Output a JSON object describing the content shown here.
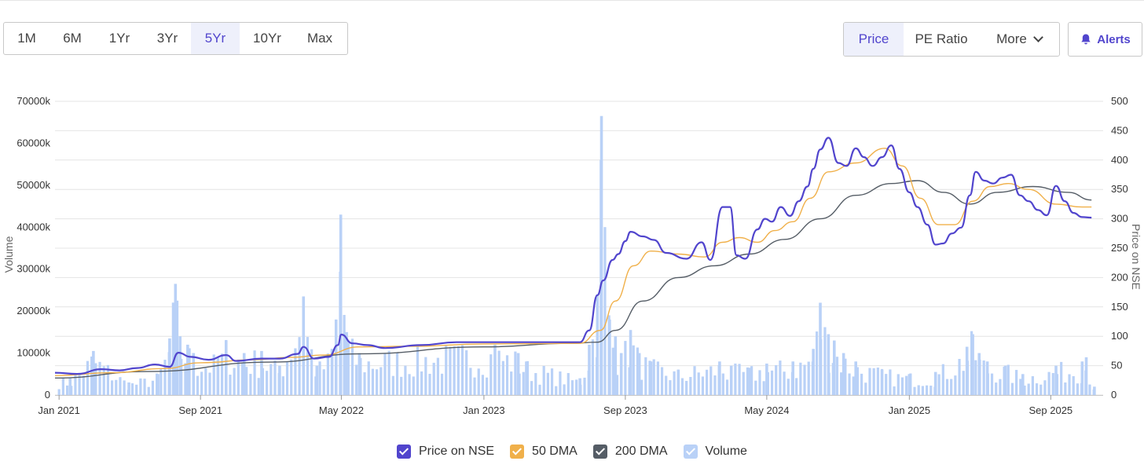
{
  "range_buttons": [
    "1M",
    "6M",
    "1Yr",
    "3Yr",
    "5Yr",
    "10Yr",
    "Max"
  ],
  "active_range": "5Yr",
  "metric_buttons": {
    "price": "Price",
    "pe": "PE Ratio",
    "more": "More"
  },
  "alerts_label": "Alerts",
  "colors": {
    "accent": "#5145cd",
    "price": "#5145cd",
    "dma50": "#f0b04a",
    "dma200": "#555d66",
    "volume": "#b9d1f7"
  },
  "icons": {
    "alerts": "bell-icon",
    "more": "chevron-down-icon",
    "legend": "checkbox-icon"
  },
  "legend": [
    {
      "label": "Price on NSE",
      "color": "#5145cd"
    },
    {
      "label": "50 DMA",
      "color": "#f0b04a"
    },
    {
      "label": "200 DMA",
      "color": "#555d66"
    },
    {
      "label": "Volume",
      "color": "#b9d1f7"
    }
  ],
  "chart_data": {
    "type": "line",
    "xlabel": "",
    "ylabel_left": "Volume",
    "ylabel_right": "Price on NSE",
    "x_range": [
      "2020-12-25",
      "2025-11-30"
    ],
    "x_ticks": [
      {
        "date": "2021-01-01",
        "label": "Jan 2021"
      },
      {
        "date": "2021-09-01",
        "label": "Sep 2021"
      },
      {
        "date": "2022-05-01",
        "label": "May 2022"
      },
      {
        "date": "2023-01-01",
        "label": "Jan 2023"
      },
      {
        "date": "2023-09-01",
        "label": "Sep 2023"
      },
      {
        "date": "2024-05-01",
        "label": "May 2024"
      },
      {
        "date": "2025-01-01",
        "label": "Jan 2025"
      },
      {
        "date": "2025-09-01",
        "label": "Sep 2025"
      }
    ],
    "y_left": {
      "min": 0,
      "max": 70000,
      "ticks": [
        "0",
        "10000k",
        "20000k",
        "30000k",
        "40000k",
        "50000k",
        "60000k",
        "70000k"
      ]
    },
    "y_right": {
      "min": 0,
      "max": 500,
      "ticks": [
        "0",
        "50",
        "100",
        "150",
        "200",
        "250",
        "300",
        "350",
        "400",
        "450",
        "500"
      ]
    },
    "grid": true,
    "legend_position": "bottom-center",
    "series": [
      {
        "name": "Price on NSE",
        "axis": "right",
        "points": [
          [
            "2020-12-25",
            38
          ],
          [
            "2021-02-01",
            36
          ],
          [
            "2021-03-15",
            44
          ],
          [
            "2021-04-15",
            42
          ],
          [
            "2021-05-15",
            46
          ],
          [
            "2021-06-15",
            52
          ],
          [
            "2021-07-10",
            48
          ],
          [
            "2021-07-25",
            72
          ],
          [
            "2021-08-15",
            65
          ],
          [
            "2021-09-15",
            60
          ],
          [
            "2021-10-15",
            68
          ],
          [
            "2021-11-01",
            58
          ],
          [
            "2021-12-15",
            62
          ],
          [
            "2022-01-15",
            62
          ],
          [
            "2022-02-15",
            70
          ],
          [
            "2022-02-25",
            82
          ],
          [
            "2022-03-15",
            62
          ],
          [
            "2022-04-10",
            65
          ],
          [
            "2022-04-25",
            85
          ],
          [
            "2022-05-01",
            103
          ],
          [
            "2022-05-20",
            88
          ],
          [
            "2022-06-15",
            85
          ],
          [
            "2022-07-15",
            80
          ],
          [
            "2022-09-15",
            85
          ],
          [
            "2022-11-15",
            90
          ],
          [
            "2023-01-15",
            90
          ],
          [
            "2023-03-15",
            90
          ],
          [
            "2023-05-15",
            90
          ],
          [
            "2023-06-15",
            90
          ],
          [
            "2023-07-01",
            110
          ],
          [
            "2023-07-15",
            170
          ],
          [
            "2023-07-25",
            195
          ],
          [
            "2023-08-10",
            230
          ],
          [
            "2023-08-20",
            240
          ],
          [
            "2023-09-01",
            262
          ],
          [
            "2023-09-10",
            278
          ],
          [
            "2023-10-01",
            270
          ],
          [
            "2023-10-20",
            264
          ],
          [
            "2023-11-10",
            242
          ],
          [
            "2023-12-15",
            232
          ],
          [
            "2024-01-10",
            260
          ],
          [
            "2024-01-25",
            230
          ],
          [
            "2024-02-15",
            320
          ],
          [
            "2024-02-28",
            320
          ],
          [
            "2024-03-10",
            238
          ],
          [
            "2024-03-25",
            232
          ],
          [
            "2024-04-15",
            282
          ],
          [
            "2024-04-28",
            300
          ],
          [
            "2024-05-10",
            295
          ],
          [
            "2024-05-25",
            320
          ],
          [
            "2024-06-10",
            305
          ],
          [
            "2024-06-25",
            330
          ],
          [
            "2024-07-10",
            355
          ],
          [
            "2024-07-20",
            385
          ],
          [
            "2024-08-01",
            418
          ],
          [
            "2024-08-15",
            438
          ],
          [
            "2024-09-01",
            395
          ],
          [
            "2024-09-15",
            390
          ],
          [
            "2024-10-01",
            420
          ],
          [
            "2024-10-15",
            405
          ],
          [
            "2024-10-30",
            390
          ],
          [
            "2024-11-15",
            405
          ],
          [
            "2024-12-01",
            425
          ],
          [
            "2024-12-15",
            385
          ],
          [
            "2025-01-01",
            345
          ],
          [
            "2025-01-15",
            320
          ],
          [
            "2025-02-01",
            290
          ],
          [
            "2025-02-15",
            256
          ],
          [
            "2025-02-28",
            258
          ],
          [
            "2025-03-15",
            275
          ],
          [
            "2025-03-31",
            285
          ],
          [
            "2025-04-15",
            340
          ],
          [
            "2025-04-25",
            380
          ],
          [
            "2025-05-10",
            365
          ],
          [
            "2025-05-25",
            360
          ],
          [
            "2025-06-10",
            370
          ],
          [
            "2025-06-25",
            375
          ],
          [
            "2025-07-10",
            340
          ],
          [
            "2025-07-25",
            330
          ],
          [
            "2025-08-10",
            315
          ],
          [
            "2025-08-25",
            306
          ],
          [
            "2025-09-10",
            356
          ],
          [
            "2025-09-25",
            330
          ],
          [
            "2025-10-10",
            310
          ],
          [
            "2025-10-25",
            303
          ],
          [
            "2025-11-10",
            302
          ]
        ]
      },
      {
        "name": "50 DMA",
        "axis": "right",
        "points": [
          [
            "2020-12-25",
            33
          ],
          [
            "2021-04-01",
            38
          ],
          [
            "2021-07-01",
            45
          ],
          [
            "2021-09-01",
            55
          ],
          [
            "2021-12-01",
            60
          ],
          [
            "2022-02-01",
            64
          ],
          [
            "2022-04-01",
            68
          ],
          [
            "2022-06-01",
            82
          ],
          [
            "2022-09-01",
            83
          ],
          [
            "2023-01-01",
            87
          ],
          [
            "2023-06-15",
            88
          ],
          [
            "2023-07-20",
            110
          ],
          [
            "2023-08-15",
            160
          ],
          [
            "2023-09-15",
            220
          ],
          [
            "2023-10-15",
            245
          ],
          [
            "2023-12-01",
            240
          ],
          [
            "2024-01-15",
            235
          ],
          [
            "2024-02-15",
            260
          ],
          [
            "2024-03-15",
            268
          ],
          [
            "2024-04-15",
            260
          ],
          [
            "2024-05-15",
            280
          ],
          [
            "2024-06-15",
            295
          ],
          [
            "2024-07-15",
            335
          ],
          [
            "2024-08-15",
            380
          ],
          [
            "2024-10-01",
            395
          ],
          [
            "2024-11-20",
            420
          ],
          [
            "2024-12-20",
            390
          ],
          [
            "2025-01-20",
            335
          ],
          [
            "2025-02-20",
            290
          ],
          [
            "2025-03-20",
            290
          ],
          [
            "2025-04-20",
            330
          ],
          [
            "2025-05-20",
            355
          ],
          [
            "2025-06-20",
            360
          ],
          [
            "2025-07-25",
            350
          ],
          [
            "2025-09-10",
            325
          ],
          [
            "2025-10-25",
            320
          ],
          [
            "2025-11-10",
            320
          ]
        ]
      },
      {
        "name": "200 DMA",
        "axis": "right",
        "points": [
          [
            "2020-12-25",
            29
          ],
          [
            "2021-06-01",
            40
          ],
          [
            "2022-01-01",
            56
          ],
          [
            "2022-06-01",
            70
          ],
          [
            "2023-01-01",
            82
          ],
          [
            "2023-06-01",
            88
          ],
          [
            "2023-07-15",
            90
          ],
          [
            "2023-08-15",
            110
          ],
          [
            "2023-10-01",
            160
          ],
          [
            "2023-12-01",
            200
          ],
          [
            "2024-02-01",
            220
          ],
          [
            "2024-04-01",
            240
          ],
          [
            "2024-06-01",
            265
          ],
          [
            "2024-08-01",
            300
          ],
          [
            "2024-10-01",
            340
          ],
          [
            "2024-12-01",
            360
          ],
          [
            "2025-01-15",
            365
          ],
          [
            "2025-03-01",
            345
          ],
          [
            "2025-04-15",
            325
          ],
          [
            "2025-06-01",
            345
          ],
          [
            "2025-08-01",
            355
          ],
          [
            "2025-10-01",
            345
          ],
          [
            "2025-11-10",
            332
          ]
        ]
      }
    ],
    "volume": {
      "name": "Volume",
      "axis": "left",
      "unit": "k",
      "points": [
        [
          "2021-01-20",
          4000
        ],
        [
          "2021-03-01",
          10500
        ],
        [
          "2021-05-01",
          3000
        ],
        [
          "2021-06-20",
          5000
        ],
        [
          "2021-07-10",
          13500
        ],
        [
          "2021-07-20",
          26500
        ],
        [
          "2021-07-28",
          14000
        ],
        [
          "2021-08-10",
          12000
        ],
        [
          "2021-08-20",
          10000
        ],
        [
          "2021-10-01",
          9000
        ],
        [
          "2021-10-15",
          13000
        ],
        [
          "2021-11-15",
          10000
        ],
        [
          "2021-12-15",
          10500
        ],
        [
          "2022-01-15",
          7000
        ],
        [
          "2022-02-25",
          23500
        ],
        [
          "2022-03-20",
          7000
        ],
        [
          "2022-04-15",
          11000
        ],
        [
          "2022-04-22",
          18000
        ],
        [
          "2022-04-30",
          43000
        ],
        [
          "2022-05-10",
          15000
        ],
        [
          "2022-06-01",
          10000
        ],
        [
          "2023-01-20",
          12000
        ],
        [
          "2023-03-01",
          10000
        ],
        [
          "2023-03-15",
          8000
        ],
        [
          "2023-06-15",
          4000
        ],
        [
          "2023-07-01",
          12000
        ],
        [
          "2023-07-15",
          24000
        ],
        [
          "2023-07-22",
          66500
        ],
        [
          "2023-08-05",
          18000
        ],
        [
          "2023-08-15",
          14000
        ],
        [
          "2023-08-25",
          10000
        ],
        [
          "2023-09-10",
          15500
        ],
        [
          "2023-09-25",
          10000
        ],
        [
          "2023-10-15",
          8000
        ],
        [
          "2023-12-01",
          6000
        ],
        [
          "2024-02-10",
          8000
        ],
        [
          "2024-03-01",
          7000
        ],
        [
          "2024-04-01",
          6500
        ],
        [
          "2024-05-01",
          7500
        ],
        [
          "2024-06-15",
          8000
        ],
        [
          "2024-07-20",
          11000
        ],
        [
          "2024-08-01",
          22000
        ],
        [
          "2024-08-15",
          14500
        ],
        [
          "2024-08-25",
          13000
        ],
        [
          "2024-09-10",
          10000
        ],
        [
          "2024-10-01",
          8000
        ],
        [
          "2024-11-15",
          6000
        ],
        [
          "2025-01-01",
          5000
        ],
        [
          "2025-02-15",
          5500
        ],
        [
          "2025-04-10",
          11500
        ],
        [
          "2025-04-20",
          14500
        ],
        [
          "2025-05-01",
          10000
        ],
        [
          "2025-05-15",
          8000
        ],
        [
          "2025-06-15",
          7000
        ],
        [
          "2025-07-15",
          5000
        ],
        [
          "2025-09-10",
          7000
        ],
        [
          "2025-10-25",
          8000
        ],
        [
          "2025-11-01",
          9000
        ],
        [
          "2025-11-15",
          2000
        ]
      ]
    }
  }
}
